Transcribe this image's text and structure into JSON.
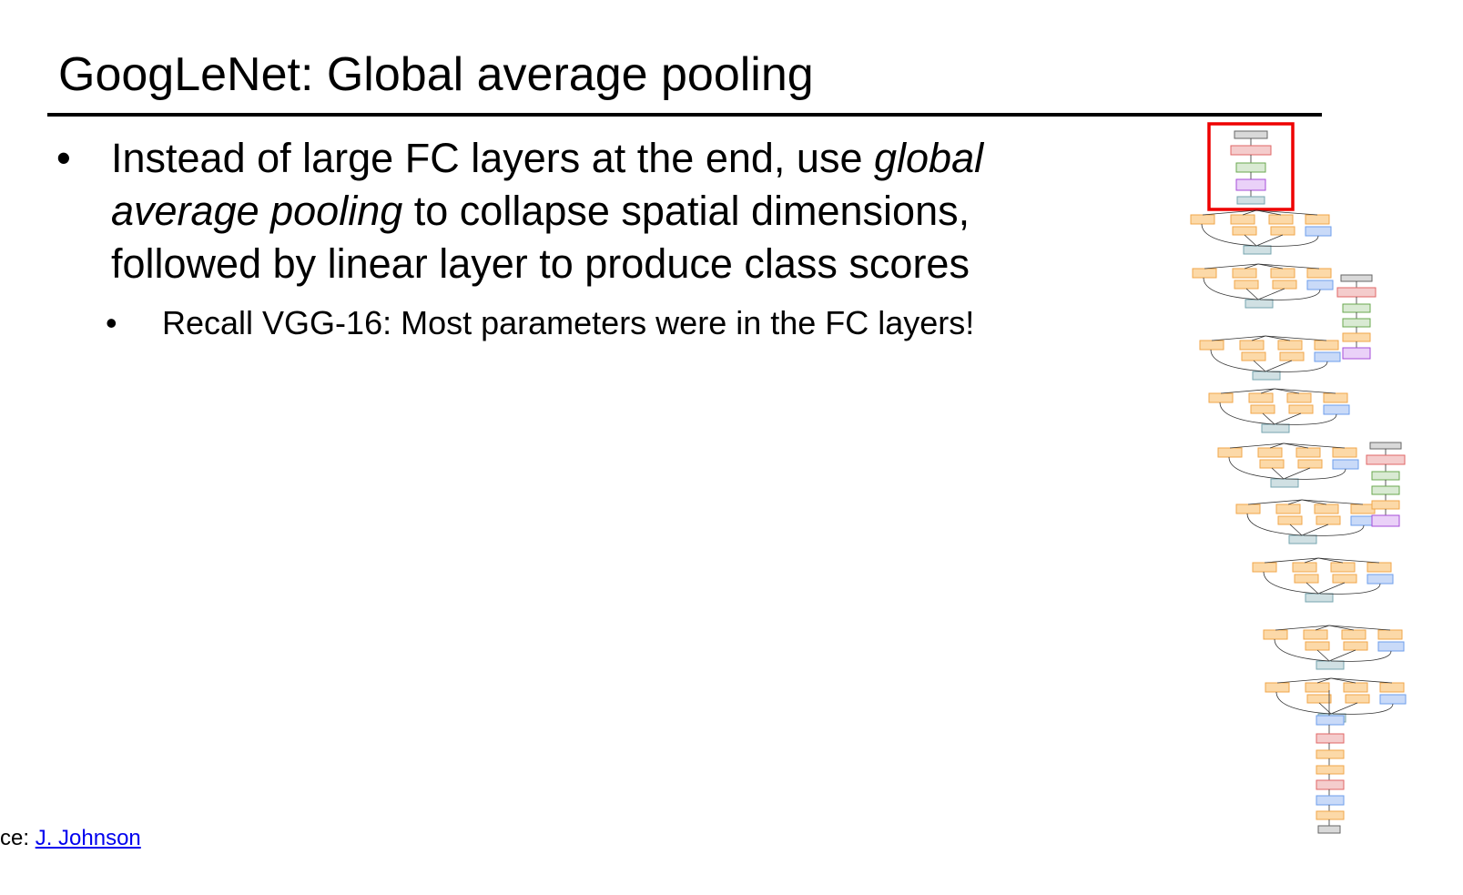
{
  "slide": {
    "title": "GoogLeNet: Global average pooling",
    "bullet1": {
      "part1": "Instead of large FC layers at the end, use ",
      "italic": "global average pooling",
      "part2": " to collapse spatial dimensions, followed by linear layer to produce class scores"
    },
    "bullet2": "Recall VGG-16: Most parameters were in the FC layers!",
    "footer": {
      "prefix": "ce: ",
      "link": "J. Johnson"
    }
  },
  "colors": {
    "conv": "#fcd9a8",
    "conv_border": "#f0a64a",
    "pool": "#c9daf8",
    "pool_border": "#6d9eeb",
    "concat": "#d0e0e3",
    "concat_border": "#76a5af",
    "fc": "#d9ead3",
    "fc_border": "#6aa84f",
    "softmax": "#f4cccc",
    "softmax_border": "#e06666",
    "avgpool": "#ead1f8",
    "avgpool_border": "#a64dd9",
    "gray": "#d9d9d9",
    "gray_border": "#666666",
    "highlight": "#ee0000"
  }
}
